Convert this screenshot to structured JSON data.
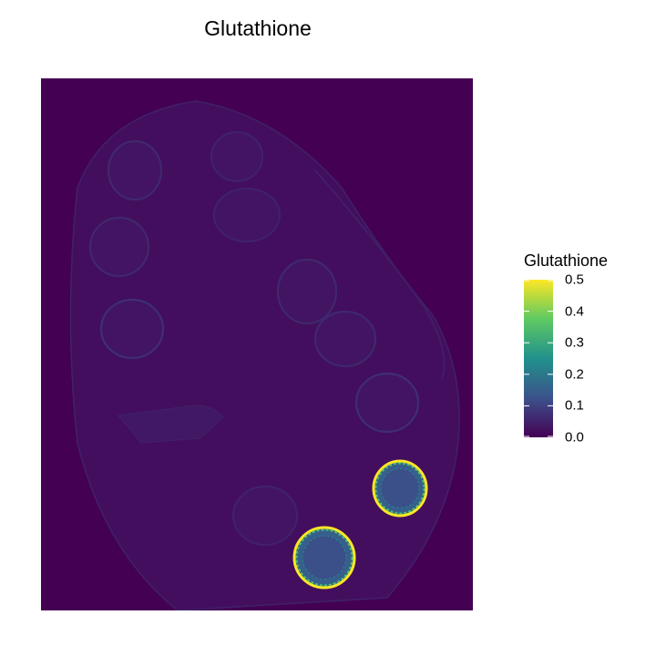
{
  "chart_data": {
    "type": "heatmap",
    "title": "Glutathione",
    "xlabel": "",
    "ylabel": "",
    "grid": false,
    "colormap": "viridis",
    "color_range": [
      0.0,
      0.5
    ],
    "background_value": 0.0,
    "tissue_baseline_value": 0.02,
    "legend": {
      "title": "Glutathione",
      "placement": "right",
      "ticks": [
        0.0,
        0.1,
        0.2,
        0.3,
        0.4,
        0.5
      ],
      "tick_labels": [
        "0.0",
        "0.1",
        "0.2",
        "0.3",
        "0.4",
        "0.5"
      ]
    },
    "features": [
      {
        "kind": "ring",
        "label": "",
        "value": 0.06
      },
      {
        "kind": "ring",
        "label": "",
        "value": 0.05
      },
      {
        "kind": "ring",
        "label": "",
        "value": 0.05
      },
      {
        "kind": "ring",
        "label": "",
        "value": 0.06
      },
      {
        "kind": "ring",
        "label": "",
        "value": 0.06
      },
      {
        "kind": "ring",
        "label": "",
        "value": 0.07
      },
      {
        "kind": "ring",
        "label": "",
        "value": 0.06
      },
      {
        "kind": "ring",
        "label": "",
        "value": 0.07
      },
      {
        "kind": "ring",
        "label": "",
        "value": 0.05
      },
      {
        "kind": "hot-disc",
        "label": "",
        "interior_value": 0.15,
        "edge_value": 0.5
      },
      {
        "kind": "hot-disc",
        "label": "",
        "interior_value": 0.15,
        "edge_value": 0.5
      }
    ]
  }
}
